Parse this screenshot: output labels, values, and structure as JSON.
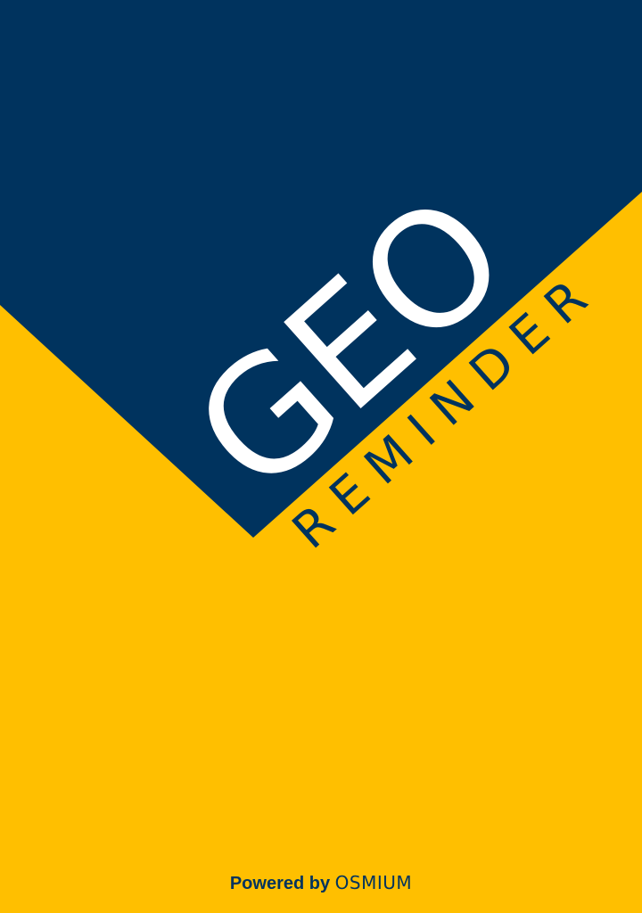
{
  "app": {
    "logo_word": "GEO",
    "logo_subword": "REMINDER"
  },
  "footer": {
    "powered_label": "Powered by",
    "brand_name": "OSMIUM"
  },
  "colors": {
    "background_yellow": "#FFBF00",
    "navy": "#00335E",
    "logo_text": "#FFFFFF"
  }
}
